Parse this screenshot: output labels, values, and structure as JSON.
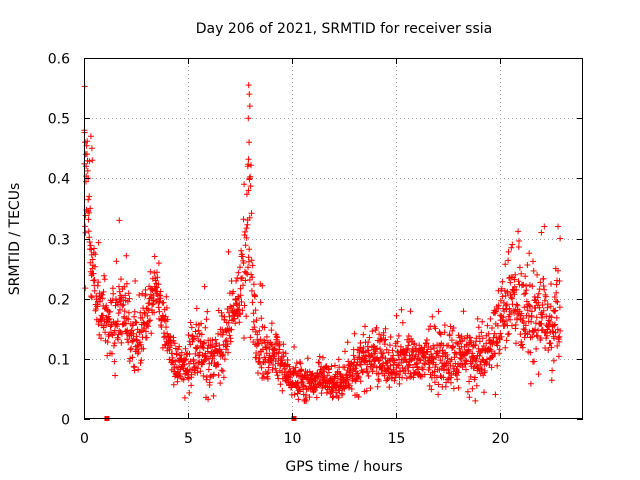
{
  "chart_data": {
    "type": "scatter",
    "title": "Day 206 of 2021, SRMTID for receiver ssia",
    "xlabel": "GPS time / hours",
    "ylabel": "SRMTID / TECUs",
    "xlim": [
      0,
      24
    ],
    "ylim": [
      0,
      0.6
    ],
    "xticks": [
      0,
      5,
      10,
      15,
      20
    ],
    "xtick_labels": [
      "0",
      "5",
      "10",
      "15",
      "20"
    ],
    "yticks": [
      0,
      0.1,
      0.2,
      0.3,
      0.4,
      0.5,
      0.6
    ],
    "ytick_labels": [
      "0",
      "0.1",
      "0.2",
      "0.3",
      "0.4",
      "0.5",
      "0.6"
    ],
    "grid": true,
    "marker": "plus",
    "series_color": "#ff0000",
    "zero_markers_x": [
      1.1,
      10.1
    ],
    "trend": [
      [
        0.0,
        0.4,
        0.06
      ],
      [
        0.15,
        0.36,
        0.07
      ],
      [
        0.3,
        0.29,
        0.06
      ],
      [
        0.5,
        0.22,
        0.05
      ],
      [
        0.8,
        0.18,
        0.04
      ],
      [
        1.2,
        0.14,
        0.04
      ],
      [
        1.6,
        0.18,
        0.05
      ],
      [
        2.0,
        0.17,
        0.04
      ],
      [
        2.4,
        0.12,
        0.04
      ],
      [
        2.8,
        0.15,
        0.04
      ],
      [
        3.2,
        0.2,
        0.03
      ],
      [
        3.5,
        0.22,
        0.03
      ],
      [
        3.8,
        0.17,
        0.03
      ],
      [
        4.1,
        0.12,
        0.03
      ],
      [
        4.5,
        0.08,
        0.02
      ],
      [
        5.0,
        0.09,
        0.03
      ],
      [
        5.5,
        0.12,
        0.04
      ],
      [
        6.0,
        0.09,
        0.03
      ],
      [
        6.5,
        0.12,
        0.04
      ],
      [
        7.0,
        0.16,
        0.04
      ],
      [
        7.5,
        0.21,
        0.04
      ],
      [
        7.8,
        0.28,
        0.08
      ],
      [
        8.0,
        0.35,
        0.1
      ],
      [
        8.1,
        0.2,
        0.05
      ],
      [
        8.3,
        0.12,
        0.04
      ],
      [
        8.8,
        0.1,
        0.03
      ],
      [
        9.3,
        0.11,
        0.03
      ],
      [
        9.8,
        0.07,
        0.02
      ],
      [
        10.3,
        0.06,
        0.02
      ],
      [
        11.0,
        0.06,
        0.02
      ],
      [
        11.5,
        0.07,
        0.02
      ],
      [
        12.0,
        0.055,
        0.015
      ],
      [
        12.5,
        0.06,
        0.02
      ],
      [
        13.0,
        0.08,
        0.03
      ],
      [
        13.5,
        0.1,
        0.03
      ],
      [
        14.0,
        0.1,
        0.03
      ],
      [
        15.0,
        0.09,
        0.03
      ],
      [
        16.0,
        0.1,
        0.03
      ],
      [
        17.0,
        0.1,
        0.03
      ],
      [
        18.0,
        0.1,
        0.03
      ],
      [
        19.0,
        0.1,
        0.03
      ],
      [
        19.5,
        0.11,
        0.03
      ],
      [
        20.0,
        0.16,
        0.05
      ],
      [
        20.5,
        0.19,
        0.05
      ],
      [
        21.0,
        0.18,
        0.05
      ],
      [
        21.5,
        0.17,
        0.05
      ],
      [
        22.0,
        0.17,
        0.05
      ],
      [
        22.5,
        0.15,
        0.05
      ],
      [
        22.9,
        0.18,
        0.06
      ]
    ],
    "peaks": [
      [
        0.02,
        0.48
      ],
      [
        0.05,
        0.46
      ],
      [
        0.08,
        0.44
      ],
      [
        0.1,
        0.42
      ],
      [
        0.2,
        0.4
      ],
      [
        0.25,
        0.37
      ],
      [
        0.3,
        0.35
      ],
      [
        0.33,
        0.47
      ],
      [
        0.38,
        0.45
      ],
      [
        0.4,
        0.43
      ],
      [
        7.92,
        0.555
      ],
      [
        7.95,
        0.54
      ],
      [
        7.98,
        0.52
      ],
      [
        7.9,
        0.5
      ],
      [
        7.94,
        0.46
      ],
      [
        7.88,
        0.42
      ],
      [
        7.96,
        0.4
      ],
      [
        7.91,
        0.38
      ],
      [
        1.7,
        0.33
      ],
      [
        3.4,
        0.27
      ],
      [
        5.8,
        0.22
      ],
      [
        14.5,
        0.15
      ],
      [
        20.6,
        0.29
      ],
      [
        22.0,
        0.31
      ],
      [
        22.8,
        0.32
      ],
      [
        22.9,
        0.3
      ]
    ]
  }
}
